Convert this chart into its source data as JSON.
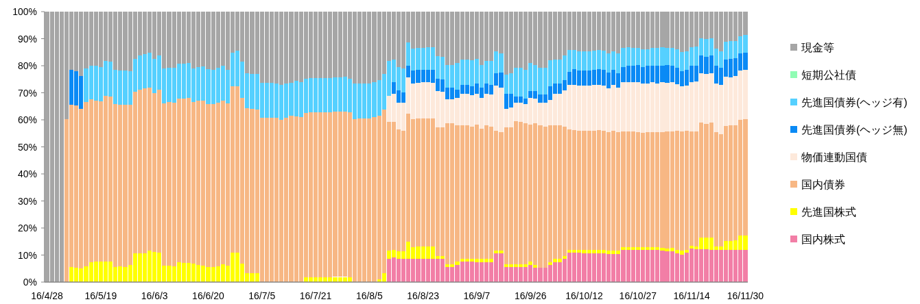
{
  "chart_data": {
    "type": "bar",
    "stacked": true,
    "legend": "right",
    "categories": [
      "16/4/28",
      null,
      null,
      null,
      null,
      null,
      null,
      null,
      null,
      null,
      null,
      "16/5/19",
      null,
      null,
      null,
      null,
      null,
      null,
      null,
      null,
      null,
      null,
      "16/6/3",
      null,
      null,
      null,
      null,
      null,
      null,
      null,
      null,
      null,
      null,
      "16/6/20",
      null,
      null,
      null,
      null,
      null,
      null,
      null,
      null,
      null,
      null,
      "16/7/5",
      null,
      null,
      null,
      null,
      null,
      null,
      null,
      null,
      null,
      null,
      "16/7/21",
      null,
      null,
      null,
      null,
      null,
      null,
      null,
      null,
      null,
      null,
      "16/8/5",
      null,
      null,
      null,
      null,
      null,
      null,
      null,
      null,
      null,
      null,
      "16/8/23",
      null,
      null,
      null,
      null,
      null,
      null,
      null,
      null,
      null,
      null,
      "16/9/7",
      null,
      null,
      null,
      null,
      null,
      null,
      null,
      null,
      null,
      null,
      "16/9/26",
      null,
      null,
      null,
      null,
      null,
      null,
      null,
      null,
      null,
      null,
      "16/10/12",
      null,
      null,
      null,
      null,
      null,
      null,
      null,
      null,
      null,
      null,
      "16/10/27",
      null,
      null,
      null,
      null,
      null,
      null,
      null,
      null,
      null,
      null,
      "16/11/14",
      null,
      null,
      null,
      null,
      null,
      null,
      null,
      null,
      null,
      null,
      "16/11/30"
    ],
    "ylim": [
      0,
      100
    ],
    "yticks": [
      {
        "value": 0,
        "label": "0%"
      },
      {
        "value": 10,
        "label": "10%"
      },
      {
        "value": 20,
        "label": "20%"
      },
      {
        "value": 30,
        "label": "30%"
      },
      {
        "value": 40,
        "label": "40%"
      },
      {
        "value": 50,
        "label": "50%"
      },
      {
        "value": 60,
        "label": "60%"
      },
      {
        "value": 70,
        "label": "70%"
      },
      {
        "value": 80,
        "label": "80%"
      },
      {
        "value": 90,
        "label": "90%"
      },
      {
        "value": 100,
        "label": "100%"
      }
    ],
    "series": [
      {
        "name": "国内株式",
        "color": "#f27ea6",
        "values": [
          0,
          0,
          0,
          0,
          0,
          0,
          0,
          0,
          0,
          0,
          0,
          0,
          0,
          0,
          0,
          0,
          0,
          0,
          0,
          0,
          0,
          0,
          0,
          0,
          0,
          0,
          0,
          0,
          0,
          0,
          0,
          0,
          0,
          0,
          0,
          0,
          0,
          0,
          0,
          0,
          0,
          0,
          0,
          0,
          0,
          0,
          0,
          0,
          0,
          0,
          0,
          0,
          0,
          0,
          0,
          0,
          0,
          0,
          0,
          0,
          0,
          0,
          0,
          0,
          0,
          0,
          0,
          0,
          0,
          0,
          8.5,
          9.0,
          8.5,
          8.5,
          8.5,
          8.5,
          8.5,
          8.7,
          8.5,
          8.5,
          8.5,
          8.5,
          5.5,
          5.5,
          6.3,
          7.6,
          7.6,
          7.6,
          7.4,
          7.4,
          7.4,
          7.4,
          10.7,
          10.7,
          5.5,
          5.5,
          5.5,
          5.5,
          5.5,
          6.3,
          5.3,
          5.3,
          5.3,
          6.3,
          7.4,
          7.4,
          8.6,
          10.8,
          10.8,
          10.8,
          10.7,
          10.7,
          10.7,
          10.7,
          10.7,
          10.5,
          10.5,
          10.5,
          11.8,
          11.8,
          11.8,
          11.8,
          11.8,
          11.8,
          11.8,
          11.8,
          11.7,
          11.4,
          11.4,
          10.7,
          10.1,
          11.0,
          12.3,
          12.1,
          12.1,
          12.1,
          12.0,
          12.0,
          12.0,
          12.0,
          12.0,
          12.0,
          12.0,
          12.0
        ]
      },
      {
        "name": "先進国株式",
        "color": "#ffff00",
        "values": [
          0,
          0,
          0,
          0,
          0,
          5.5,
          5.3,
          5.1,
          5.9,
          7.4,
          7.6,
          7.6,
          7.6,
          7.6,
          5.5,
          5.7,
          5.5,
          6.3,
          10.6,
          10.7,
          10.7,
          11.6,
          11.2,
          10.8,
          6.2,
          6.1,
          5.9,
          7.4,
          7.2,
          7.2,
          6.8,
          6.3,
          6.2,
          5.5,
          5.5,
          5.7,
          6.5,
          6.2,
          11.0,
          11.0,
          6.8,
          3.2,
          3.2,
          3.2,
          0,
          0,
          0,
          0,
          0,
          0,
          0,
          0,
          0,
          1.9,
          1.9,
          1.9,
          1.9,
          1.9,
          1.9,
          1.9,
          1.9,
          1.9,
          1.9,
          0,
          0,
          0,
          0,
          0,
          1.1,
          3.2,
          3.2,
          2.8,
          2.9,
          2.9,
          6.5,
          4.3,
          4.6,
          4.4,
          4.6,
          4.6,
          1.2,
          1.2,
          1.1,
          1.1,
          1.3,
          1.1,
          1.1,
          1.1,
          1.1,
          1.1,
          1.1,
          1.1,
          1.0,
          1.0,
          1.1,
          1.1,
          1.1,
          1.1,
          1.1,
          1.3,
          1.0,
          0,
          0,
          1.1,
          1.1,
          1.1,
          1.1,
          1.2,
          1.0,
          1.0,
          1.1,
          1.1,
          1.1,
          1.1,
          1.1,
          1.2,
          1.2,
          1.2,
          1.1,
          1.1,
          1.1,
          1.1,
          1.0,
          1.0,
          1.0,
          1.0,
          1.0,
          1.0,
          1.3,
          1.1,
          1.6,
          0.8,
          1.2,
          1.0,
          4.4,
          4.4,
          4.5,
          1.1,
          1.1,
          3.2,
          3.2,
          3.4,
          5.3,
          5.3
        ]
      },
      {
        "name": "国内債券",
        "color": "#f7b784",
        "values": [
          0,
          0,
          0,
          0,
          60.3,
          60.0,
          60.0,
          58.9,
          60.6,
          60.1,
          59.6,
          59.2,
          61.3,
          61.0,
          60.2,
          59.8,
          60.1,
          59.2,
          59.7,
          60.5,
          60.9,
          60.2,
          58.7,
          60.4,
          59.9,
          60.4,
          60.5,
          60.5,
          60.6,
          60.8,
          59.7,
          60.7,
          60.9,
          60.4,
          60.2,
          60.7,
          60.7,
          59.8,
          61.3,
          61.3,
          61.2,
          61.0,
          60.8,
          60.6,
          60.7,
          60.7,
          60.7,
          60.7,
          60.0,
          60.7,
          61.5,
          61.3,
          61.0,
          60.7,
          60.8,
          60.8,
          60.8,
          60.8,
          60.8,
          61.1,
          61.1,
          61.1,
          60.8,
          60.3,
          60.4,
          60.4,
          60.4,
          60.9,
          60.4,
          60.5,
          47.5,
          47.4,
          45.1,
          44.6,
          47.4,
          47.5,
          47.3,
          47.3,
          47.5,
          47.3,
          47.6,
          47.4,
          52.1,
          52.1,
          50.5,
          49.2,
          49.2,
          48.8,
          49.7,
          48.1,
          49.4,
          49.0,
          44.3,
          43.7,
          50.5,
          50.6,
          53.0,
          52.7,
          52.1,
          50.7,
          52.4,
          52.6,
          52.2,
          50.5,
          49.4,
          49.4,
          47.8,
          44.5,
          44.4,
          44.2,
          44.1,
          44.1,
          44.2,
          44.4,
          44.1,
          43.7,
          44.2,
          43.8,
          42.9,
          42.7,
          42.7,
          42.6,
          42.4,
          42.6,
          42.6,
          42.7,
          42.8,
          43.4,
          43.1,
          44.2,
          44.1,
          44.1,
          42.3,
          42.7,
          42.5,
          42.1,
          42.5,
          42.3,
          41.7,
          42.5,
          42.7,
          42.7,
          42.7,
          42.9
        ]
      },
      {
        "name": "物価連動国債",
        "color": "#fde9db",
        "values": [
          0,
          0,
          0,
          0,
          0,
          0,
          0,
          0,
          0,
          0,
          0,
          0,
          0,
          0,
          0,
          0,
          0,
          0,
          0,
          0,
          0,
          0,
          0,
          0,
          0,
          0,
          0,
          0,
          0,
          0,
          0,
          0,
          0,
          0,
          0,
          0,
          0,
          0,
          0,
          0,
          0,
          0,
          0,
          0,
          0,
          0,
          0,
          0,
          0,
          0,
          0,
          0,
          0,
          0,
          0,
          0,
          0,
          0,
          0,
          0,
          0,
          0,
          0,
          0,
          0,
          0,
          0,
          0,
          0,
          0,
          9.7,
          10.4,
          9.9,
          10.4,
          13.3,
          13.1,
          13.3,
          13.4,
          13.2,
          13.3,
          13.3,
          13.2,
          8.8,
          8.8,
          10.1,
          11.7,
          11.7,
          11.6,
          11.5,
          11.4,
          11.8,
          11.8,
          16.7,
          16.5,
          6.9,
          7.3,
          6.8,
          7.1,
          7.0,
          9.9,
          9.2,
          8.5,
          8.9,
          9.5,
          11.8,
          11.8,
          13.3,
          16.5,
          16.8,
          16.7,
          16.8,
          16.8,
          16.9,
          16.7,
          16.8,
          16.3,
          17.0,
          16.5,
          18.0,
          18.2,
          18.4,
          18.3,
          18.1,
          18.1,
          18.4,
          18.0,
          18.3,
          17.9,
          18.0,
          17.1,
          16.5,
          16.8,
          18.2,
          18.3,
          18.2,
          18.3,
          18.3,
          18.1,
          18.1,
          18.2,
          17.9,
          18.0,
          18.2,
          18.2
        ]
      },
      {
        "name": "先進国債券(ヘッジ無)",
        "color": "#0a8af5",
        "values": [
          0,
          0,
          0,
          0,
          0,
          12.9,
          12.7,
          12.2,
          0,
          0,
          0,
          0,
          0,
          0,
          0,
          0,
          0,
          0,
          0,
          0,
          0,
          0,
          0,
          0,
          0,
          0,
          0,
          0,
          0,
          0,
          0,
          0,
          0,
          0,
          0,
          0,
          0,
          0,
          0,
          0,
          0,
          0,
          0,
          0,
          0,
          0,
          0,
          0,
          0,
          0,
          0,
          0,
          0,
          0,
          0,
          0,
          0,
          0,
          0,
          0,
          0,
          0,
          0,
          0,
          0,
          0,
          0,
          0,
          0,
          0,
          0,
          4.4,
          4.4,
          3.8,
          4.4,
          4.8,
          4.7,
          4.7,
          4.7,
          4.8,
          4.5,
          4.7,
          4.4,
          4.4,
          3.0,
          3.3,
          3.3,
          3.3,
          3.8,
          3.9,
          3.6,
          3.6,
          4.6,
          5.6,
          5.7,
          5.2,
          2.2,
          2.2,
          2.2,
          2.4,
          2.7,
          2.9,
          2.9,
          4.9,
          3.6,
          3.6,
          4.0,
          4.6,
          5.8,
          5.5,
          5.5,
          5.5,
          5.5,
          5.9,
          5.9,
          5.8,
          5.7,
          5.3,
          5.7,
          6.1,
          6.1,
          6.5,
          6.3,
          6.4,
          6.3,
          6.4,
          6.3,
          6.6,
          6.3,
          6.1,
          5.7,
          5.9,
          5.9,
          6.0,
          6.7,
          6.4,
          6.4,
          6.4,
          6.3,
          6.5,
          6.8,
          6.6,
          6.3,
          6.3
        ]
      },
      {
        "name": "先進国債券(ヘッジ有)",
        "color": "#55d0ff",
        "values": [
          0,
          0,
          0,
          0,
          0,
          0,
          0,
          0,
          12.5,
          12.6,
          12.9,
          12.8,
          12.9,
          13.0,
          12.8,
          12.7,
          12.6,
          12.5,
          12.3,
          12.5,
          12.7,
          13.0,
          12.7,
          12.5,
          12.9,
          12.7,
          12.9,
          12.8,
          12.9,
          13.0,
          12.5,
          12.5,
          12.6,
          12.9,
          12.7,
          12.8,
          12.7,
          12.4,
          12.5,
          13.3,
          13.4,
          13.1,
          12.9,
          13.1,
          13.0,
          13.0,
          13.0,
          12.8,
          13.0,
          12.8,
          12.2,
          13.1,
          12.8,
          12.6,
          12.8,
          12.8,
          12.8,
          12.8,
          12.8,
          12.7,
          12.7,
          12.9,
          12.5,
          13.0,
          12.9,
          12.9,
          12.9,
          12.9,
          13.2,
          13.2,
          12.9,
          8.2,
          8.7,
          8.9,
          8.4,
          8.2,
          8.1,
          8.1,
          8.3,
          8.3,
          8.4,
          8.3,
          8.4,
          8.4,
          9.7,
          9.3,
          9.3,
          9.6,
          9.1,
          8.4,
          8.4,
          8.8,
          7.9,
          7.0,
          7.1,
          7.5,
          10.6,
          10.6,
          10.7,
          10.3,
          9.7,
          10.0,
          10.0,
          9.7,
          8.9,
          8.9,
          8.9,
          8.2,
          7.0,
          7.2,
          7.2,
          7.2,
          7.2,
          7.0,
          7.0,
          7.0,
          6.8,
          7.2,
          7.1,
          6.9,
          6.5,
          6.3,
          6.6,
          6.3,
          6.5,
          6.6,
          6.7,
          6.3,
          6.5,
          6.8,
          7.1,
          6.8,
          6.9,
          7.0,
          6.3,
          6.5,
          6.5,
          6.5,
          6.2,
          6.4,
          6.4,
          6.5,
          6.5,
          6.6
        ]
      },
      {
        "name": "短期公社債",
        "color": "#90fcb4",
        "values": [
          null,
          null,
          null,
          null,
          null,
          null,
          null,
          null,
          null,
          null,
          null,
          null,
          null,
          null,
          null,
          null,
          null,
          null,
          null,
          null,
          null,
          null,
          null,
          null,
          null,
          null,
          null,
          null,
          null,
          null,
          null,
          null,
          null,
          null,
          null,
          null,
          null,
          null,
          null,
          null,
          null,
          null,
          null,
          null,
          null,
          null,
          null,
          null,
          null,
          null,
          null,
          null,
          null,
          null,
          null,
          null,
          null,
          null,
          null,
          null,
          null,
          null,
          null,
          null,
          null,
          null,
          null,
          null,
          null,
          null,
          null,
          null,
          null,
          null,
          null,
          null,
          null,
          null,
          null,
          null,
          null,
          null,
          null,
          null,
          null,
          null,
          null,
          null,
          null,
          null,
          null,
          null,
          null,
          null,
          null,
          null,
          null,
          null,
          null,
          null,
          null,
          null,
          null,
          null,
          null,
          null,
          null,
          null,
          null,
          null,
          null,
          null,
          null,
          null,
          null,
          null,
          null,
          null,
          null,
          null,
          null,
          null,
          null,
          null,
          null,
          null,
          null,
          null,
          null,
          null,
          null,
          null,
          null,
          null,
          null,
          null,
          null,
          null,
          null,
          null,
          null,
          null,
          null,
          null
        ]
      },
      {
        "name": "現金等",
        "color": "#a6a6a6",
        "values": [
          100,
          100,
          100,
          100,
          39.7,
          21.6,
          22.0,
          23.8,
          21.0,
          19.9,
          19.9,
          20.4,
          18.2,
          18.4,
          21.5,
          21.8,
          21.8,
          22.0,
          17.4,
          16.3,
          15.7,
          15.2,
          17.4,
          16.3,
          21.0,
          20.8,
          20.7,
          19.3,
          19.3,
          19.0,
          21.0,
          20.5,
          20.3,
          21.2,
          21.6,
          20.8,
          20.1,
          21.6,
          15.2,
          14.4,
          18.6,
          22.7,
          23.1,
          23.1,
          26.3,
          26.3,
          26.3,
          26.5,
          27.0,
          26.5,
          26.3,
          25.6,
          26.2,
          24.8,
          24.5,
          24.5,
          24.5,
          24.5,
          24.5,
          24.3,
          24.3,
          24.1,
          24.8,
          26.7,
          26.7,
          26.7,
          26.7,
          26.2,
          25.3,
          23.1,
          18.2,
          17.8,
          20.5,
          20.9,
          11.5,
          13.6,
          13.5,
          13.4,
          13.2,
          13.2,
          16.5,
          16.7,
          19.7,
          19.7,
          19.1,
          17.8,
          17.8,
          18.0,
          17.4,
          19.7,
          18.3,
          18.3,
          14.8,
          15.5,
          23.2,
          22.8,
          20.8,
          20.8,
          21.4,
          19.1,
          19.7,
          20.7,
          20.7,
          18.0,
          17.8,
          17.8,
          16.3,
          14.2,
          14.2,
          14.6,
          14.6,
          14.6,
          14.4,
          14.2,
          14.4,
          15.5,
          14.6,
          15.5,
          13.4,
          13.2,
          13.4,
          13.4,
          13.8,
          13.8,
          13.4,
          13.5,
          13.2,
          13.4,
          13.4,
          14.0,
          14.9,
          14.6,
          13.2,
          12.9,
          9.8,
          10.2,
          9.8,
          13.6,
          14.6,
          11.2,
          11.0,
          10.8,
          9.0,
          8.7
        ]
      }
    ]
  }
}
